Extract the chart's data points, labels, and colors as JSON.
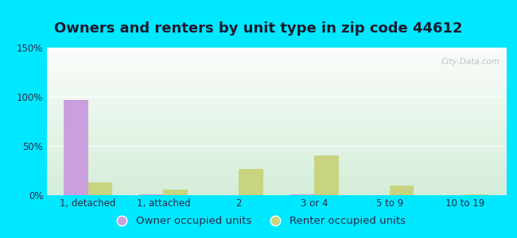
{
  "title": "Owners and renters by unit type in zip code 44612",
  "categories": [
    "1, detached",
    "1, attached",
    "2",
    "3 or 4",
    "5 to 9",
    "10 to 19"
  ],
  "owner_values": [
    97,
    1,
    0,
    1,
    0,
    0
  ],
  "renter_values": [
    13,
    6,
    27,
    40,
    10,
    1
  ],
  "owner_color": "#c9a0dc",
  "renter_color": "#c8d480",
  "title_fontsize": 13,
  "tick_fontsize": 8.5,
  "legend_fontsize": 9.5,
  "ylim": [
    0,
    150
  ],
  "yticks": [
    0,
    50,
    100,
    150
  ],
  "ytick_labels": [
    "0%",
    "50%",
    "100%",
    "150%"
  ],
  "background_outer": "#00e8ff",
  "watermark_text": "City-Data.com",
  "bar_width": 0.32,
  "title_color": "#1a1a2e",
  "tick_color": "#2a2a4a",
  "legend_label_owner": "Owner occupied units",
  "legend_label_renter": "Renter occupied units"
}
